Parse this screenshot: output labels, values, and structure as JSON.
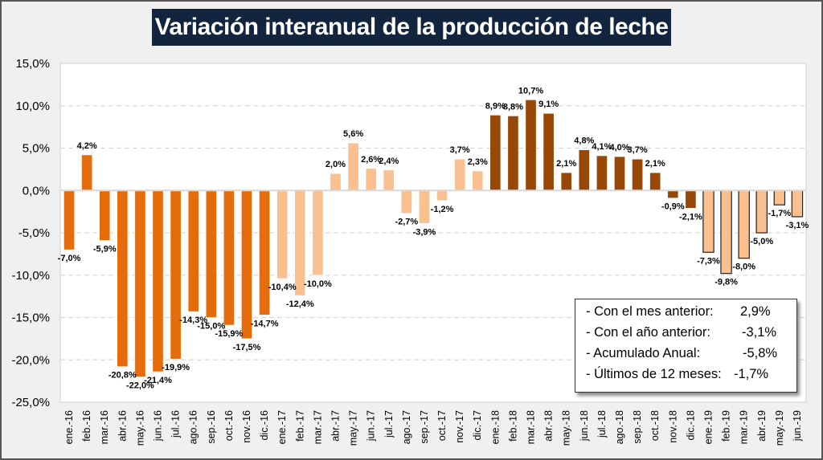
{
  "chart_data": {
    "type": "bar",
    "title": "Variación interanual de la producción de leche",
    "xlabel": "",
    "ylabel": "",
    "ylim": [
      -25,
      15
    ],
    "yticks": [
      "15,0%",
      "10,0%",
      "5,0%",
      "0,0%",
      "-5,0%",
      "-10,0%",
      "-15,0%",
      "-20,0%",
      "-25,0%"
    ],
    "ytick_values": [
      15,
      10,
      5,
      0,
      -5,
      -10,
      -15,
      -20,
      -25
    ],
    "grid": true,
    "categories": [
      "ene.-16",
      "feb.-16",
      "mar.-16",
      "abr.-16",
      "may.-16",
      "jun.-16",
      "jul.-16",
      "ago.-16",
      "sep.-16",
      "oct.-16",
      "nov.-16",
      "dic.-16",
      "ene.-17",
      "feb.-17",
      "mar.-17",
      "abr.-17",
      "may.-17",
      "jun.-17",
      "jul.-17",
      "ago.-17",
      "sep.-17",
      "oct.-17",
      "nov.-17",
      "dic.-17",
      "ene.-18",
      "feb.-18",
      "mar.-18",
      "abr.-18",
      "may.-18",
      "jun.-18",
      "jul.-18",
      "ago.-18",
      "sep.-18",
      "oct.-18",
      "nov.-18",
      "dic.-18",
      "ene.-19",
      "feb.-19",
      "mar.-19",
      "abr.-19",
      "may.-19",
      "jun.-19"
    ],
    "values": [
      -7.0,
      4.2,
      -5.9,
      -20.8,
      -22.0,
      -21.4,
      -19.9,
      -14.3,
      -15.0,
      -15.9,
      -17.5,
      -14.7,
      -10.4,
      -12.4,
      -10.0,
      2.0,
      5.6,
      2.6,
      2.4,
      -2.7,
      -3.9,
      -1.2,
      3.7,
      2.3,
      8.9,
      8.8,
      10.7,
      9.1,
      2.1,
      4.8,
      4.1,
      4.0,
      3.7,
      2.1,
      -0.9,
      -2.1,
      -7.3,
      -9.8,
      -8.0,
      -5.0,
      -1.7,
      -3.1
    ],
    "labels": [
      "-7,0%",
      "4,2%",
      "-5,9%",
      "-20,8%",
      "-22,0%",
      "-21,4%",
      "-19,9%",
      "-14,3%",
      "-15,0%",
      "-15,9%",
      "-17,5%",
      "-14,7%",
      "-10,4%",
      "-12,4%",
      "-10,0%",
      "2,0%",
      "5,6%",
      "2,6%",
      "2,4%",
      "-2,7%",
      "-3,9%",
      "-1,2%",
      "3,7%",
      "2,3%",
      "8,9%",
      "8,8%",
      "10,7%",
      "9,1%",
      "2,1%",
      "4,8%",
      "4,1%",
      "4,0%",
      "3,7%",
      "2,1%",
      "-0,9%",
      "-2,1%",
      "-7,3%",
      "-9,8%",
      "-8,0%",
      "-5,0%",
      "-1,7%",
      "-3,1%"
    ],
    "year_colors": {
      "2016": "#e46c0a",
      "2017": "#fac090",
      "2018": "#974706",
      "2019": "#fac090"
    },
    "series_year": [
      "2016",
      "2016",
      "2016",
      "2016",
      "2016",
      "2016",
      "2016",
      "2016",
      "2016",
      "2016",
      "2016",
      "2016",
      "2017",
      "2017",
      "2017",
      "2017",
      "2017",
      "2017",
      "2017",
      "2017",
      "2017",
      "2017",
      "2017",
      "2017",
      "2018",
      "2018",
      "2018",
      "2018",
      "2018",
      "2018",
      "2018",
      "2018",
      "2018",
      "2018",
      "2018",
      "2018",
      "2019",
      "2019",
      "2019",
      "2019",
      "2019",
      "2019"
    ],
    "outlined_years": [
      "2019"
    ]
  },
  "summary": {
    "rows": [
      {
        "label": "- Con el mes anterior:",
        "value": "2,9%"
      },
      {
        "label": "- Con el año anterior:",
        "value": "-3,1%"
      },
      {
        "label": "- Acumulado Anual:",
        "value": "-5,8%"
      },
      {
        "label": "- Últimos de 12 meses:",
        "value": "-1,7%"
      }
    ]
  }
}
